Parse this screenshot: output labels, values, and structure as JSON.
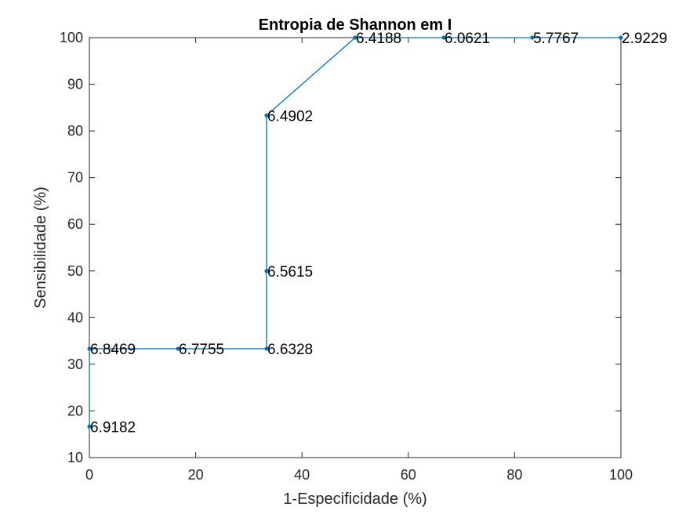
{
  "chart_data": {
    "type": "line",
    "title": "Entropia de Shannon em I",
    "xlabel": "1-Especificidade (%)",
    "ylabel": "Sensibilidade (%)",
    "xlim": [
      0,
      100
    ],
    "ylim": [
      10,
      100
    ],
    "xticks": [
      0,
      20,
      40,
      60,
      80,
      100
    ],
    "yticks": [
      10,
      20,
      30,
      40,
      50,
      60,
      70,
      80,
      90,
      100
    ],
    "grid": false,
    "line_color": "#0072BD",
    "points": [
      {
        "x": 0,
        "y": 16.67,
        "label": "6.9182"
      },
      {
        "x": 0,
        "y": 33.33,
        "label": "6.8469"
      },
      {
        "x": 16.67,
        "y": 33.33,
        "label": "6.7755"
      },
      {
        "x": 33.33,
        "y": 33.33,
        "label": "6.6328"
      },
      {
        "x": 33.33,
        "y": 50,
        "label": "6.5615"
      },
      {
        "x": 33.33,
        "y": 83.33,
        "label": "6.4902"
      },
      {
        "x": 50,
        "y": 100,
        "label": "6.4188"
      },
      {
        "x": 66.67,
        "y": 100,
        "label": "6.0621"
      },
      {
        "x": 83.33,
        "y": 100,
        "label": "5.7767"
      },
      {
        "x": 100,
        "y": 100,
        "label": "2.9229"
      }
    ]
  }
}
